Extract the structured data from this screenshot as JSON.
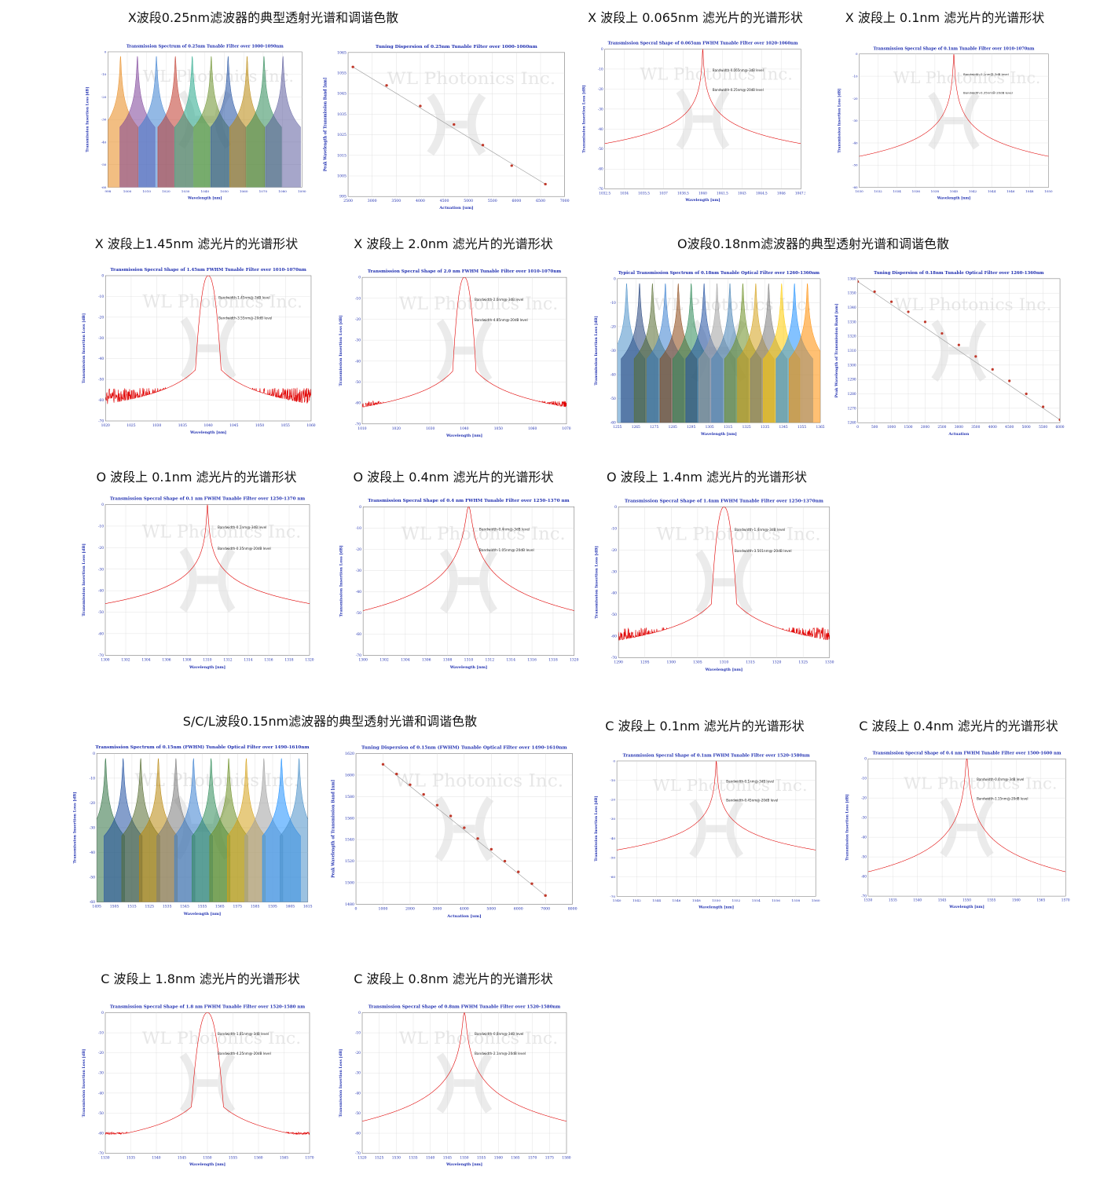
{
  "sections": [
    {
      "id": "s1",
      "title": "X波段0.25nm滤波器的典型透射光谱和调谐色散"
    },
    {
      "id": "s2",
      "title": "X 波段上 0.065nm 滤光片的光谱形状"
    },
    {
      "id": "s3",
      "title": "X 波段上 0.1nm 滤光片的光谱形状"
    },
    {
      "id": "s4",
      "title": "X 波段上1.45nm 滤光片的光谱形状"
    },
    {
      "id": "s5",
      "title": "X 波段上 2.0nm 滤光片的光谱形状"
    },
    {
      "id": "s6",
      "title": "O波段0.18nm滤波器的典型透射光谱和调谐色散"
    },
    {
      "id": "s7",
      "title": "O 波段上 0.1nm 滤光片的光谱形状"
    },
    {
      "id": "s8",
      "title": "O 波段上 0.4nm 滤光片的光谱形状"
    },
    {
      "id": "s9",
      "title": "O 波段上 1.4nm 滤光片的光谱形状"
    },
    {
      "id": "s10",
      "title": "S/C/L波段0.15nm滤波器的典型透射光谱和调谐色散"
    },
    {
      "id": "s11",
      "title": "C 波段上 0.1nm 滤光片的光谱形状"
    },
    {
      "id": "s12",
      "title": "C 波段上 0.4nm 滤光片的光谱形状"
    },
    {
      "id": "s13",
      "title": "C 波段上 1.8nm 滤光片的光谱形状"
    },
    {
      "id": "s14",
      "title": "C 波段上 0.8nm 滤光片的光谱形状"
    }
  ],
  "watermark": "WL Photonics Inc.",
  "chart_data": [
    {
      "id": "c1",
      "type": "line",
      "title": "Transmission Spectrum of 0.25nm Tunable Filter over 1000-1090nm",
      "xlabel": "Wavelength [nm]",
      "ylabel": "Transmission Insertion Loss [dB]",
      "xlim": [
        998,
        1090
      ],
      "ylim": [
        -60,
        0
      ],
      "xticks": [
        "998",
        "1000",
        "1010",
        "1020",
        "1030",
        "1040",
        "1050",
        "1060",
        "1070",
        "1080",
        "1090"
      ],
      "yticks": [
        "0",
        "-10",
        "-20",
        "-30",
        "-40",
        "-50",
        "-60"
      ],
      "peaks": [
        1004,
        1012,
        1021,
        1030,
        1038,
        1047,
        1055,
        1064,
        1072,
        1081
      ],
      "peak_level": -2,
      "floor": -55,
      "colors": [
        "#e8891c",
        "#7b3f98",
        "#3a7fd0",
        "#c0392b",
        "#27a88a",
        "#6a8f2a",
        "#1f4fa0",
        "#b8860b",
        "#2e8b57",
        "#5d5d9e"
      ]
    },
    {
      "id": "c2",
      "type": "scatter",
      "title": "Tuning Dispersion of 0.25nm Tunable Filter over 1000-1060nm",
      "xlabel": "Actuation [um]",
      "ylabel": "Peak Wavelength of Transmission Band [nm]",
      "xlim": [
        2500,
        7000
      ],
      "ylim": [
        995,
        1065
      ],
      "xticks": [
        "2500",
        "3000",
        "3500",
        "4000",
        "4500",
        "5000",
        "5500",
        "6000",
        "6500",
        "7000"
      ],
      "yticks": [
        "1065",
        "1055",
        "1045",
        "1035",
        "1025",
        "1015",
        "1005",
        "995"
      ],
      "x": [
        2600,
        3300,
        4000,
        4700,
        5300,
        5900,
        6600
      ],
      "y": [
        1058,
        1049,
        1039,
        1030,
        1020,
        1010,
        1001
      ]
    },
    {
      "id": "c3",
      "type": "line",
      "title": "Transmission Specral Shape of 0.065nm FWHM Tunable Filter over 1020-1060nm",
      "xlabel": "Wavelength [nm]",
      "ylabel": "Transmission Insertion Loss [dB]",
      "xlim": [
        1032.5,
        1047.5
      ],
      "ylim": [
        -70,
        0
      ],
      "xticks": [
        "1032.5",
        "1034",
        "1035.5",
        "1037",
        "1038.5",
        "1040",
        "1041.5",
        "1043",
        "1044.5",
        "1046",
        "1047.5"
      ],
      "yticks": [
        "0",
        "-10",
        "-20",
        "-30",
        "-40",
        "-50",
        "-60",
        "-70"
      ],
      "center": 1040,
      "fwhm": 0.065,
      "shape": "narrow",
      "floor": -60,
      "noise": 8,
      "annotations": [
        "Bandwidth-0.065nm@-3dB level",
        "Bandwidth-0.25nm@-20dB level"
      ]
    },
    {
      "id": "c4",
      "type": "line",
      "title": "Transmission Specral Shape of 0.1nm Tunable Filter over 1010-1070nm",
      "xlabel": "Wavelength [nm]",
      "ylabel": "Transmission Insertion Loss [dB]",
      "xlim": [
        1030,
        1050
      ],
      "ylim": [
        -60,
        0
      ],
      "xticks": [
        "1030",
        "1032",
        "1034",
        "1036",
        "1038",
        "1040",
        "1042",
        "1044",
        "1046",
        "1048",
        "1050"
      ],
      "yticks": [
        "0",
        "-10",
        "-20",
        "-30",
        "-40",
        "-50",
        "-60"
      ],
      "center": 1040,
      "fwhm": 0.1,
      "shape": "narrow",
      "floor": -52,
      "noise": 4,
      "annotations": [
        "Bandwidth-0.1nm@-3dB level",
        "Bandwidth-0.35nm@-20dB level"
      ]
    },
    {
      "id": "c5",
      "type": "line",
      "title": "Transmission Specral Shape of 1.45nm FWHM Tunable Filter over 1010-1070nm",
      "xlabel": "Wavelength [nm]",
      "ylabel": "Transmission Insertion Loss [dB]",
      "xlim": [
        1020,
        1060
      ],
      "ylim": [
        -70,
        0
      ],
      "xticks": [
        "1020",
        "1025",
        "1030",
        "1035",
        "1040",
        "1045",
        "1050",
        "1055",
        "1060"
      ],
      "yticks": [
        "0",
        "-10",
        "-20",
        "-30",
        "-40",
        "-50",
        "-60",
        "-70"
      ],
      "center": 1040,
      "fwhm": 1.45,
      "shape": "wide",
      "floor": -58,
      "noise": 4,
      "annotations": [
        "Bandwidth-1.45nm@-3dB level",
        "Bandwidth-3.55nm@-20dB level"
      ]
    },
    {
      "id": "c6",
      "type": "line",
      "title": "Transmission Specral Shape of 2.0 nm FWHM Tunable Filter over 1010-1070nm",
      "xlabel": "Wavelength [nm]",
      "ylabel": "Transmission Insertion Loss [dB]",
      "xlim": [
        1010,
        1070
      ],
      "ylim": [
        -70,
        0
      ],
      "xticks": [
        "1010",
        "1020",
        "1030",
        "1040",
        "1050",
        "1060",
        "1070"
      ],
      "yticks": [
        "0",
        "-10",
        "-20",
        "-30",
        "-40",
        "-50",
        "-60",
        "-70"
      ],
      "center": 1040,
      "fwhm": 2.0,
      "shape": "wide",
      "floor": -61,
      "noise": 2,
      "annotations": [
        "Bandwidth-2.0nm@-3dB level",
        "Bandwidth-4.85nm@-20dB level"
      ]
    },
    {
      "id": "c7",
      "type": "line",
      "title": "Typical Transmission Spectrum of 0.18nm Tunable Optical Filter over 1260-1360nm",
      "xlabel": "Wavelength [nm]",
      "ylabel": "Transmission Insertion Loss [dB]",
      "xlim": [
        1255,
        1365
      ],
      "ylim": [
        -60,
        0
      ],
      "xticks": [
        "1255",
        "1265",
        "1275",
        "1285",
        "1295",
        "1305",
        "1315",
        "1325",
        "1335",
        "1345",
        "1355",
        "1365"
      ],
      "yticks": [
        "0",
        "-10",
        "-20",
        "-30",
        "-40",
        "-50",
        "-60"
      ],
      "peaks": [
        1260,
        1267,
        1274,
        1281,
        1288,
        1295,
        1302,
        1309,
        1316,
        1323,
        1330,
        1337,
        1344,
        1351,
        1358
      ],
      "peak_level": -2,
      "floor": -54,
      "colors": [
        "#4a90c8",
        "#1f3f7a",
        "#556b2f",
        "#3a7fd0",
        "#8b4513",
        "#2e8b57",
        "#1f4fa0",
        "#a0a0a0",
        "#4682b4",
        "#6b8e23",
        "#d4a017",
        "#7a7a7a",
        "#ffcc00",
        "#1e90ff",
        "#ff8c00"
      ]
    },
    {
      "id": "c8",
      "type": "scatter",
      "title": "Tuning Dispersion of 0.18nm Tunable Optical Filter over 1260-1360nm",
      "xlabel": "Actuation",
      "ylabel": "Peak Wavelength of Transmission Band [nm]",
      "xlim": [
        0,
        6000
      ],
      "ylim": [
        1260,
        1360
      ],
      "xticks": [
        "0",
        "500",
        "1000",
        "1500",
        "2000",
        "2500",
        "3000",
        "3500",
        "4000",
        "4500",
        "5000",
        "5500",
        "6000"
      ],
      "yticks": [
        "1360",
        "1350",
        "1340",
        "1330",
        "1320",
        "1310",
        "1300",
        "1290",
        "1280",
        "1270",
        "1260"
      ],
      "x": [
        0,
        500,
        1000,
        1500,
        2000,
        2500,
        3000,
        3500,
        4000,
        4500,
        5000,
        5500,
        6000
      ],
      "y": [
        1358,
        1351,
        1344,
        1337,
        1330,
        1322,
        1314,
        1306,
        1297,
        1289,
        1280,
        1271,
        1262
      ]
    },
    {
      "id": "c9",
      "type": "line",
      "title": "Transmission Specral Shape of 0.1 nm FWHM Tunable Filter over 1250-1370 nm",
      "xlabel": "Wavelength [nm]",
      "ylabel": "Transmission Insertion Loss [dB]",
      "xlim": [
        1300,
        1320
      ],
      "ylim": [
        -70,
        0
      ],
      "xticks": [
        "1300",
        "1302",
        "1304",
        "1306",
        "1308",
        "1310",
        "1312",
        "1314",
        "1316",
        "1318",
        "1320"
      ],
      "yticks": [
        "0",
        "-10",
        "-20",
        "-30",
        "-40",
        "-50",
        "-60",
        "-70"
      ],
      "center": 1310,
      "fwhm": 0.1,
      "shape": "narrow",
      "floor": -58,
      "noise": 4,
      "annotations": [
        "Bandwidth-0.1nm@-3dB level",
        "Bandwidth-0.35nm@-20dB level"
      ]
    },
    {
      "id": "c10",
      "type": "line",
      "title": "Transmission Specral Shape of 0.4 nm FWHM Tunable Filter over 1250-1370 nm",
      "xlabel": "Wavelength [nm]",
      "ylabel": "Transmission Insertion Loss [dB]",
      "xlim": [
        1300,
        1320
      ],
      "ylim": [
        -70,
        0
      ],
      "xticks": [
        "1300",
        "1302",
        "1304",
        "1306",
        "1308",
        "1310",
        "1312",
        "1314",
        "1316",
        "1318",
        "1320"
      ],
      "yticks": [
        "0",
        "-10",
        "-20",
        "-30",
        "-40",
        "-50",
        "-60",
        "-70"
      ],
      "center": 1310,
      "fwhm": 0.4,
      "shape": "mid",
      "floor": -60,
      "noise": 4,
      "annotations": [
        "Bandwidth-0.4nm@-3dB level",
        "Bandwidth-1.05nm@-20dB level"
      ]
    },
    {
      "id": "c11",
      "type": "line",
      "title": "Transmission Specral Shape of 1.4nm FWHM Tunable Filter over 1250-1370nm",
      "xlabel": "Wavelength [nm]",
      "ylabel": "Transmission Insertion Loss [dB]",
      "xlim": [
        1290,
        1330
      ],
      "ylim": [
        -70,
        0
      ],
      "xticks": [
        "1290",
        "1295",
        "1300",
        "1305",
        "1310",
        "1315",
        "1320",
        "1325",
        "1330"
      ],
      "yticks": [
        "0",
        "-10",
        "-20",
        "-30",
        "-40",
        "-50",
        "-60",
        "-70"
      ],
      "center": 1310,
      "fwhm": 1.4,
      "shape": "wide",
      "floor": -60,
      "noise": 4,
      "annotations": [
        "Bandwidth-1.4nm@-3dB level",
        "Bandwidth-3.501nm@-20dB level"
      ]
    },
    {
      "id": "c12",
      "type": "line",
      "title": "Transmission Spectrum of 0.15nm (FWHM) Tunable Optical Filter over 1490-1610nm",
      "xlabel": "Wavelength [nm]",
      "ylabel": "Transmission Insertion Loss [dB]",
      "xlim": [
        1495,
        1615
      ],
      "ylim": [
        -60,
        0
      ],
      "xticks": [
        "1495",
        "1505",
        "1515",
        "1525",
        "1535",
        "1545",
        "1555",
        "1565",
        "1575",
        "1585",
        "1595",
        "1605",
        "1615"
      ],
      "yticks": [
        "0",
        "-10",
        "-20",
        "-30",
        "-40",
        "-50",
        "-60"
      ],
      "peaks": [
        1500,
        1510,
        1520,
        1530,
        1540,
        1550,
        1560,
        1570,
        1580,
        1590,
        1600,
        1610
      ],
      "peak_level": -2,
      "floor": -54,
      "colors": [
        "#2e6f40",
        "#1f4fa0",
        "#556b2f",
        "#b8860b",
        "#7a7a7a",
        "#3a7fd0",
        "#2e8b57",
        "#6b8e23",
        "#d4a017",
        "#a0a0a0",
        "#1e90ff",
        "#4a90c8"
      ]
    },
    {
      "id": "c13",
      "type": "scatter",
      "title": "Tuning Dispersion of 0.15nm (FWHM) Tunable Optical Filter over 1490-1610nm",
      "xlabel": "Actuation [um]",
      "ylabel": "Peak Wavelength of Transmission Band [nm]",
      "xlim": [
        0,
        8000
      ],
      "ylim": [
        1480,
        1620
      ],
      "xticks": [
        "0",
        "1000",
        "2000",
        "3000",
        "4000",
        "5000",
        "6000",
        "7000",
        "8000"
      ],
      "yticks": [
        "1620",
        "1600",
        "1580",
        "1560",
        "1540",
        "1520",
        "1500",
        "1480"
      ],
      "x": [
        1000,
        1500,
        2000,
        2500,
        3000,
        3500,
        4000,
        4500,
        5000,
        5500,
        6000,
        6500,
        7000
      ],
      "y": [
        1610,
        1601,
        1591,
        1582,
        1572,
        1562,
        1551,
        1541,
        1531,
        1520,
        1510,
        1499,
        1488
      ]
    },
    {
      "id": "c14",
      "type": "line",
      "title": "Transmission Specral Shape of 0.1nm  FWHM Tunable Filter over 1520-1580nm",
      "xlabel": "Wavelength [nm]",
      "ylabel": "Transmission Insertion Loss [dB]",
      "xlim": [
        1540,
        1560
      ],
      "ylim": [
        -70,
        0
      ],
      "xticks": [
        "1540",
        "1542",
        "1544",
        "1546",
        "1548",
        "1550",
        "1552",
        "1554",
        "1556",
        "1558",
        "1560"
      ],
      "yticks": [
        "0",
        "-10",
        "-20",
        "-30",
        "-40",
        "-50",
        "-60",
        "-70"
      ],
      "center": 1550,
      "fwhm": 0.1,
      "shape": "narrow",
      "floor": -62,
      "noise": 4,
      "annotations": [
        "Bandwidth-0.1nm@-3dB level",
        "Bandwidth-0.45nm@-20dB level"
      ]
    },
    {
      "id": "c15",
      "type": "line",
      "title": "Transmission Specral Shape of 0.4 nm FWHM Tunable Filter over 1500-1600 nm",
      "xlabel": "Wavelength [nm]",
      "ylabel": "Transmission Insertion Loss [dB]",
      "xlim": [
        1530,
        1570
      ],
      "ylim": [
        -70,
        0
      ],
      "xticks": [
        "1530",
        "1535",
        "1540",
        "1545",
        "1550",
        "1555",
        "1560",
        "1565",
        "1570"
      ],
      "yticks": [
        "0",
        "-10",
        "-20",
        "-30",
        "-40",
        "-50",
        "-60",
        "-70"
      ],
      "center": 1550,
      "fwhm": 0.4,
      "shape": "mid",
      "floor": -62,
      "noise": 2,
      "annotations": [
        "Bandwidth-0.4nm@-3dB level",
        "Bandwidth-1.15nm@-20dB level"
      ]
    },
    {
      "id": "c16",
      "type": "line",
      "title": "Transmission Specral Shape of 1.8 nm FWHM Tunable Filter over 1520-1580 nm",
      "xlabel": "Wavelength [nm]",
      "ylabel": "Transmission Insertion Loss [dB]",
      "xlim": [
        1530,
        1570
      ],
      "ylim": [
        -70,
        0
      ],
      "xticks": [
        "1530",
        "1535",
        "1540",
        "1545",
        "1550",
        "1555",
        "1560",
        "1565",
        "1570"
      ],
      "yticks": [
        "0",
        "-10",
        "-20",
        "-30",
        "-40",
        "-50",
        "-60",
        "-70"
      ],
      "center": 1550,
      "fwhm": 1.8,
      "shape": "wide",
      "floor": -60,
      "noise": 0.6,
      "annotations": [
        "Bandwidth-1.81nm@-3dB level",
        "Bandwidth-4.25nm@-20dB level"
      ]
    },
    {
      "id": "c17",
      "type": "line",
      "title": "Transmission Specral Shape of 0.8nm FWHM Tunable Filter over 1520-1580nm",
      "xlabel": "Wavelength [nm]",
      "ylabel": "Transmission Insertion Loss [dB]",
      "xlim": [
        1520,
        1580
      ],
      "ylim": [
        -70,
        0
      ],
      "xticks": [
        "1520",
        "1525",
        "1530",
        "1535",
        "1540",
        "1545",
        "1550",
        "1555",
        "1560",
        "1565",
        "1570",
        "1575",
        "1580"
      ],
      "yticks": [
        "0",
        "-10",
        "-20",
        "-30",
        "-40",
        "-50",
        "-60",
        "-70"
      ],
      "center": 1550,
      "fwhm": 0.8,
      "shape": "mid",
      "floor": -61,
      "noise": 3,
      "annotations": [
        "Bandwidth-0.8nm@-3dB level",
        "Bandwidth-2.1nm@-20dB level"
      ]
    }
  ]
}
